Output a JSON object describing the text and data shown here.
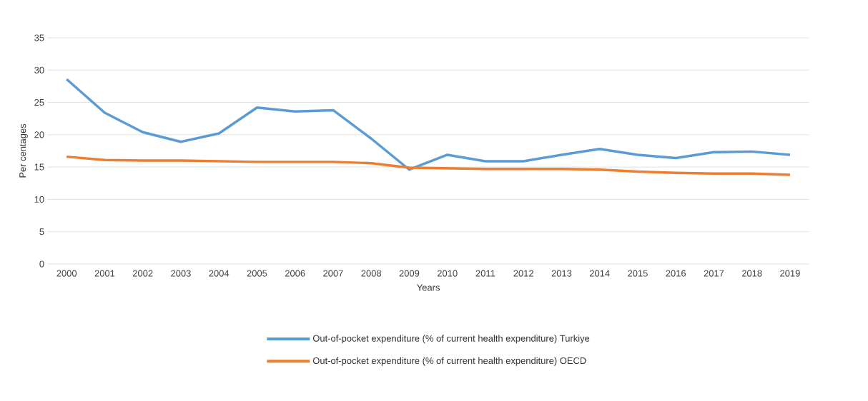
{
  "chart_data": {
    "type": "line",
    "xlabel": "Years",
    "ylabel": "Per centages",
    "categories": [
      "2000",
      "2001",
      "2002",
      "2003",
      "2004",
      "2005",
      "2006",
      "2007",
      "2008",
      "2009",
      "2010",
      "2011",
      "2012",
      "2013",
      "2014",
      "2015",
      "2016",
      "2017",
      "2018",
      "2019"
    ],
    "series": [
      {
        "name": "Out-of-pocket expenditure (% of current health expenditure) Turkiye",
        "color": "#5b9bd5",
        "values": [
          28.6,
          23.4,
          20.4,
          18.9,
          20.2,
          24.2,
          23.6,
          23.8,
          19.4,
          14.6,
          16.9,
          15.9,
          15.9,
          16.9,
          17.8,
          16.9,
          16.4,
          17.3,
          17.4,
          16.9
        ]
      },
      {
        "name": "Out-of-pocket expenditure (% of current health expenditure) OECD",
        "color": "#ed7d31",
        "values": [
          16.6,
          16.1,
          16.0,
          16.0,
          15.9,
          15.8,
          15.8,
          15.8,
          15.6,
          14.9,
          14.8,
          14.7,
          14.7,
          14.7,
          14.6,
          14.3,
          14.1,
          14.0,
          14.0,
          13.8
        ]
      }
    ],
    "ylim": [
      0,
      35
    ],
    "yticks": [
      0,
      5,
      10,
      15,
      20,
      25,
      30,
      35
    ],
    "grid": "y",
    "legend": "bottom",
    "marker": "none",
    "line_style": "solid"
  }
}
